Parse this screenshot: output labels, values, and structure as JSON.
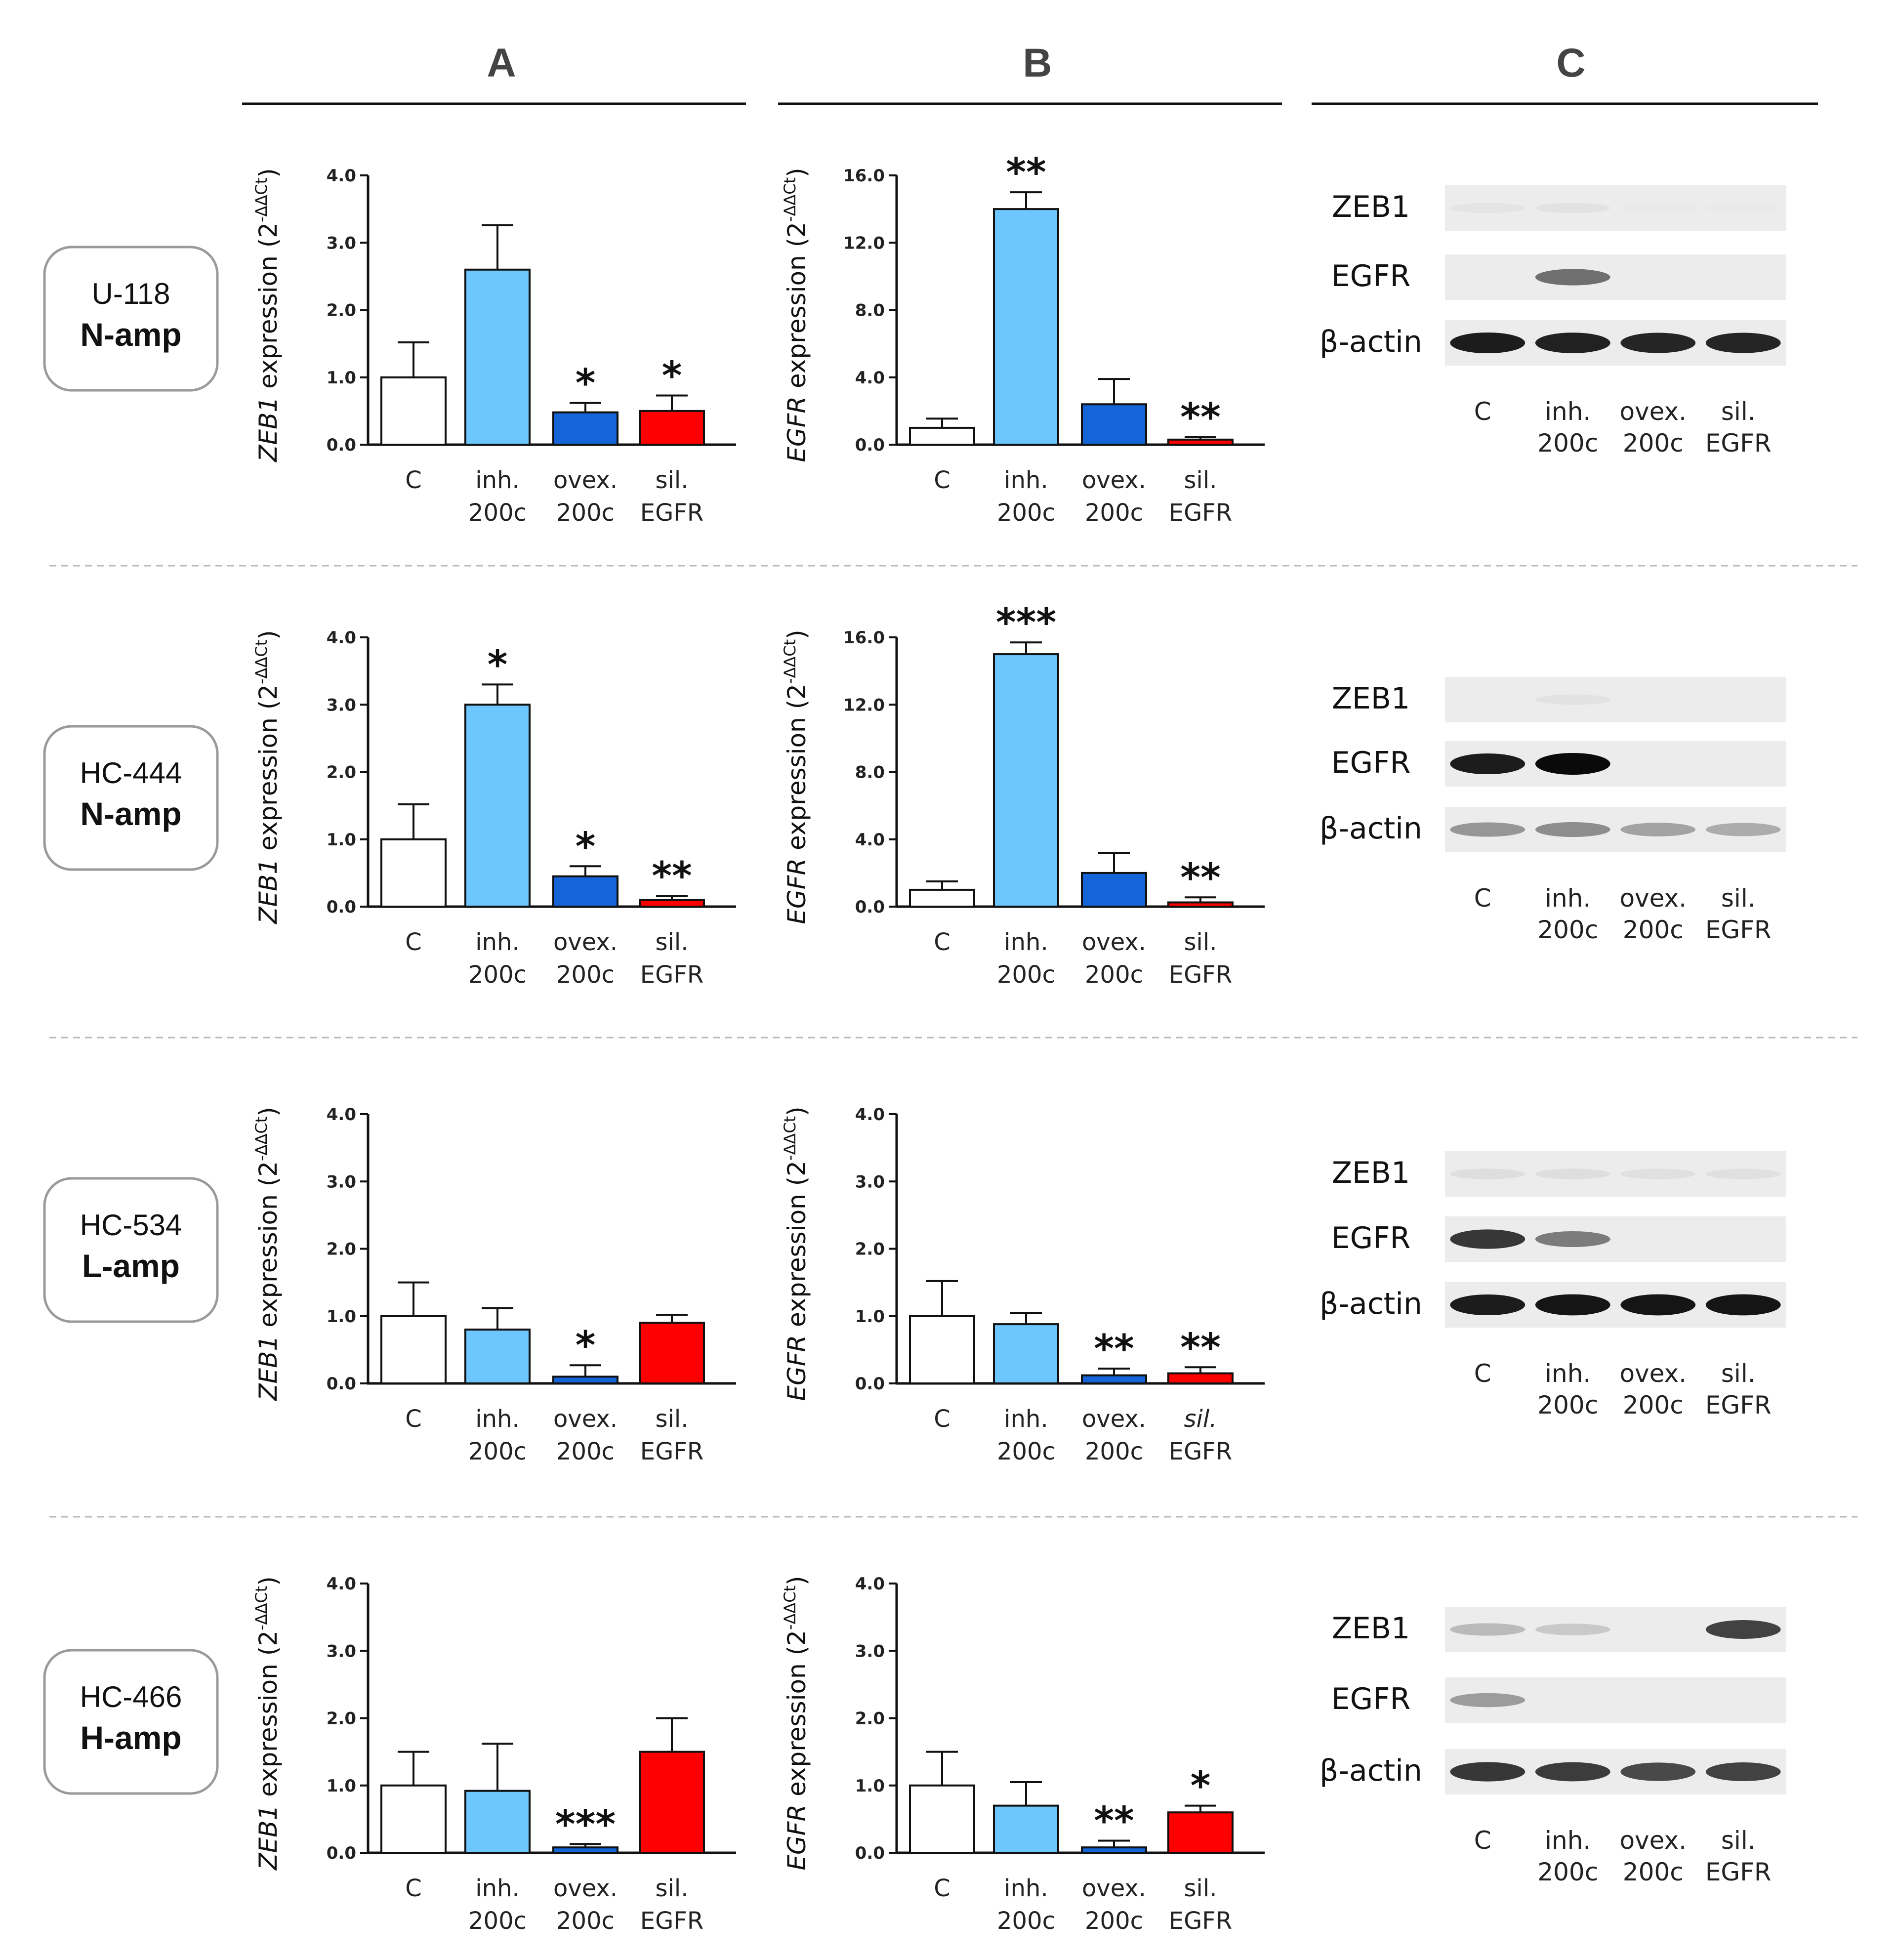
{
  "column_labels": [
    "A",
    "B",
    "C"
  ],
  "colors": {
    "control": "#ffffff",
    "inhibitor": "#6ec6ff",
    "overexpression": "#1565d8",
    "silencing": "#ff0000"
  },
  "samples": [
    {
      "id": "U-118",
      "amp": "N-amp"
    },
    {
      "id": "HC-444",
      "amp": "N-amp"
    },
    {
      "id": "HC-534",
      "amp": "L-amp"
    },
    {
      "id": "HC-466",
      "amp": "H-amp"
    }
  ],
  "chart_data": [
    {
      "type": "bar",
      "row": 0,
      "col": "A",
      "gene": "ZEB1",
      "ylabel": "ZEB1 expression (2-ΔΔCt)",
      "ylim": [
        0,
        4
      ],
      "yticks": [
        "0.0",
        "1.0",
        "2.0",
        "3.0",
        "4.0"
      ],
      "categories": [
        [
          "C"
        ],
        [
          "inh.",
          "200c"
        ],
        [
          "ovex.",
          "200c"
        ],
        [
          "sil.",
          "EGFR"
        ]
      ],
      "values": [
        1.0,
        2.6,
        0.48,
        0.5
      ],
      "errors": [
        0.52,
        0.66,
        0.14,
        0.23
      ],
      "significance": [
        "",
        "",
        "*",
        "*"
      ]
    },
    {
      "type": "bar",
      "row": 0,
      "col": "B",
      "gene": "EGFR",
      "ylabel": "EGFR expression (2-ΔΔCt)",
      "ylim": [
        0,
        16
      ],
      "yticks": [
        "0.0",
        "4.0",
        "8.0",
        "12.0",
        "16.0"
      ],
      "categories": [
        [
          "C"
        ],
        [
          "inh.",
          "200c"
        ],
        [
          "ovex.",
          "200c"
        ],
        [
          "sil.",
          "EGFR"
        ]
      ],
      "values": [
        1.0,
        14.0,
        2.4,
        0.3
      ],
      "errors": [
        0.55,
        1.0,
        1.5,
        0.15
      ],
      "significance": [
        "",
        "**",
        "",
        "**"
      ]
    },
    {
      "type": "bar",
      "row": 1,
      "col": "A",
      "gene": "ZEB1",
      "ylabel": "ZEB1 expression (2-ΔΔCt)",
      "ylim": [
        0,
        4
      ],
      "yticks": [
        "0.0",
        "1.0",
        "2.0",
        "3.0",
        "4.0"
      ],
      "categories": [
        [
          "C"
        ],
        [
          "inh.",
          "200c"
        ],
        [
          "ovex.",
          "200c"
        ],
        [
          "sil.",
          "EGFR"
        ]
      ],
      "values": [
        1.0,
        3.0,
        0.45,
        0.1
      ],
      "errors": [
        0.52,
        0.3,
        0.15,
        0.06
      ],
      "significance": [
        "",
        "*",
        "*",
        "**"
      ]
    },
    {
      "type": "bar",
      "row": 1,
      "col": "B",
      "gene": "EGFR",
      "ylabel": "EGFR expression (2-ΔΔCt)",
      "ylim": [
        0,
        16
      ],
      "yticks": [
        "0.0",
        "4.0",
        "8.0",
        "12.0",
        "16.0"
      ],
      "categories": [
        [
          "C"
        ],
        [
          "inh.",
          "200c"
        ],
        [
          "ovex.",
          "200c"
        ],
        [
          "sil.",
          "EGFR"
        ]
      ],
      "values": [
        1.0,
        15.0,
        2.0,
        0.25
      ],
      "errors": [
        0.5,
        0.7,
        1.2,
        0.3
      ],
      "significance": [
        "",
        "***",
        "",
        "**"
      ]
    },
    {
      "type": "bar",
      "row": 2,
      "col": "A",
      "gene": "ZEB1",
      "ylabel": "ZEB1 expression (2-ΔΔCt)",
      "ylim": [
        0,
        4
      ],
      "yticks": [
        "0.0",
        "1.0",
        "2.0",
        "3.0",
        "4.0"
      ],
      "categories": [
        [
          "C"
        ],
        [
          "inh.",
          "200c"
        ],
        [
          "ovex.",
          "200c"
        ],
        [
          "sil.",
          "EGFR"
        ]
      ],
      "values": [
        1.0,
        0.8,
        0.1,
        0.9
      ],
      "errors": [
        0.5,
        0.32,
        0.17,
        0.12
      ],
      "significance": [
        "",
        "",
        "*",
        ""
      ]
    },
    {
      "type": "bar",
      "row": 2,
      "col": "B",
      "gene": "EGFR",
      "ylabel": "EGFR expression (2-ΔΔCt)",
      "ylim": [
        0,
        4
      ],
      "yticks": [
        "0.0",
        "1.0",
        "2.0",
        "3.0",
        "4.0"
      ],
      "categories": [
        [
          "C"
        ],
        [
          "inh.",
          "200c"
        ],
        [
          "ovex.",
          "200c"
        ],
        [
          "sil.",
          "EGFR"
        ]
      ],
      "values": [
        1.0,
        0.88,
        0.12,
        0.15
      ],
      "errors": [
        0.52,
        0.17,
        0.1,
        0.09
      ],
      "significance": [
        "",
        "",
        "**",
        "**"
      ]
    },
    {
      "type": "bar",
      "row": 3,
      "col": "A",
      "gene": "ZEB1",
      "ylabel": "ZEB1 expression (2-ΔΔCt)",
      "ylim": [
        0,
        4
      ],
      "yticks": [
        "0.0",
        "1.0",
        "2.0",
        "3.0",
        "4.0"
      ],
      "categories": [
        [
          "C"
        ],
        [
          "inh.",
          "200c"
        ],
        [
          "ovex.",
          "200c"
        ],
        [
          "sil.",
          "EGFR"
        ]
      ],
      "values": [
        1.0,
        0.92,
        0.08,
        1.5
      ],
      "errors": [
        0.5,
        0.7,
        0.05,
        0.5
      ],
      "significance": [
        "",
        "",
        "***",
        ""
      ]
    },
    {
      "type": "bar",
      "row": 3,
      "col": "B",
      "gene": "EGFR",
      "ylabel": "EGFR expression (2-ΔΔCt)",
      "ylim": [
        0,
        4
      ],
      "yticks": [
        "0.0",
        "1.0",
        "2.0",
        "3.0",
        "4.0"
      ],
      "categories": [
        [
          "C"
        ],
        [
          "inh.",
          "200c"
        ],
        [
          "ovex.",
          "200c"
        ],
        [
          "sil.",
          "EGFR"
        ]
      ],
      "values": [
        1.0,
        0.7,
        0.08,
        0.6
      ],
      "errors": [
        0.5,
        0.35,
        0.1,
        0.1
      ],
      "significance": [
        "",
        "",
        "**",
        "*"
      ]
    }
  ],
  "western_blot": {
    "proteins": [
      "ZEB1",
      "EGFR",
      "β-actin"
    ],
    "lanes": [
      [
        "C"
      ],
      [
        "inh.",
        "200c"
      ],
      [
        "ovex.",
        "200c"
      ],
      [
        "sil.",
        "EGFR"
      ]
    ],
    "band_intensity": [
      [
        [
          0.03,
          0.04,
          0.01,
          0.01
        ],
        [
          0.0,
          0.55,
          0.0,
          0.0
        ],
        [
          0.92,
          0.9,
          0.88,
          0.88
        ]
      ],
      [
        [
          0.0,
          0.04,
          0.0,
          0.0
        ],
        [
          0.92,
          1.0,
          0.0,
          0.0
        ],
        [
          0.38,
          0.42,
          0.32,
          0.28
        ]
      ],
      [
        [
          0.06,
          0.06,
          0.05,
          0.05
        ],
        [
          0.8,
          0.5,
          0.0,
          0.0
        ],
        [
          0.92,
          0.95,
          0.95,
          0.95
        ]
      ],
      [
        [
          0.22,
          0.15,
          0.0,
          0.75
        ],
        [
          0.35,
          0.0,
          0.0,
          0.0
        ],
        [
          0.8,
          0.78,
          0.72,
          0.75
        ]
      ]
    ]
  }
}
